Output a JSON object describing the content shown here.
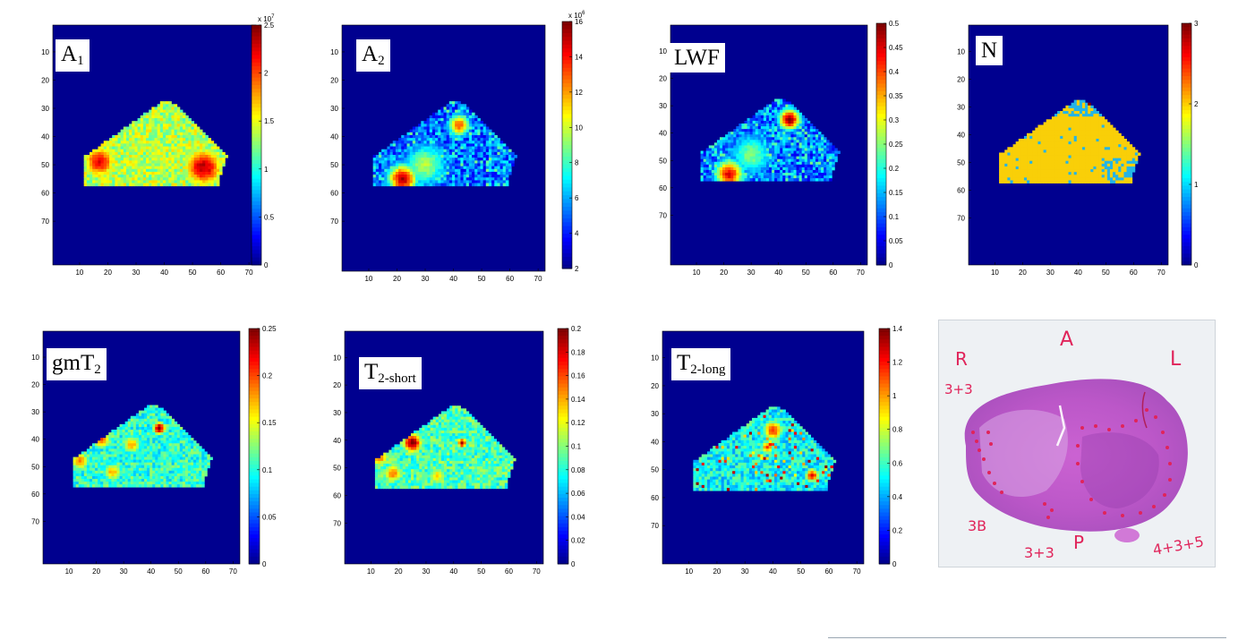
{
  "panels": [
    {
      "id": "A1",
      "label_main": "A",
      "label_sub": "1",
      "colorbar_ticks": [
        "2.5",
        "2",
        "1.5",
        "1",
        "0.5",
        "0"
      ],
      "colorbar_exponent": "x 10",
      "colorbar_exponent_power": "7"
    },
    {
      "id": "A2",
      "label_main": "A",
      "label_sub": "2",
      "colorbar_ticks": [
        "16",
        "14",
        "12",
        "10",
        "8",
        "6",
        "4",
        "2"
      ],
      "colorbar_exponent": "x 10",
      "colorbar_exponent_power": "6"
    },
    {
      "id": "LWF",
      "label_main": "LWF",
      "label_sub": "",
      "colorbar_ticks": [
        "0.5",
        "0.45",
        "0.4",
        "0.35",
        "0.3",
        "0.25",
        "0.2",
        "0.15",
        "0.1",
        "0.05",
        "0"
      ]
    },
    {
      "id": "N",
      "label_main": "N",
      "label_sub": "",
      "colorbar_ticks": [
        "3",
        "2",
        "1",
        "0"
      ]
    },
    {
      "id": "gmT2",
      "label_main": "gmT",
      "label_sub": "2",
      "colorbar_ticks": [
        "0.25",
        "0.2",
        "0.15",
        "0.1",
        "0.05",
        "0"
      ]
    },
    {
      "id": "T2short",
      "label_main": "T",
      "label_sub": "2-short",
      "colorbar_ticks": [
        "0.2",
        "0.18",
        "0.16",
        "0.14",
        "0.12",
        "0.1",
        "0.08",
        "0.06",
        "0.04",
        "0.02",
        "0"
      ]
    },
    {
      "id": "T2long",
      "label_main": "T",
      "label_sub": "2-long",
      "colorbar_ticks": [
        "1.4",
        "1.2",
        "1",
        "0.8",
        "0.6",
        "0.4",
        "0.2",
        "0"
      ]
    }
  ],
  "axis_ticks": {
    "x": [
      "10",
      "20",
      "30",
      "40",
      "50",
      "60",
      "70"
    ],
    "y": [
      "10",
      "20",
      "30",
      "40",
      "50",
      "60",
      "70"
    ]
  },
  "histology": {
    "annotations": [
      "A",
      "R",
      "L",
      "3+3",
      "3B",
      "3+3",
      "P",
      "4+3+5"
    ]
  },
  "colors": {
    "background": "#00008f",
    "jet_high": "#800000",
    "jet_low": "#00008f",
    "stain": "#d45fc8",
    "ink": "#e0245a"
  }
}
